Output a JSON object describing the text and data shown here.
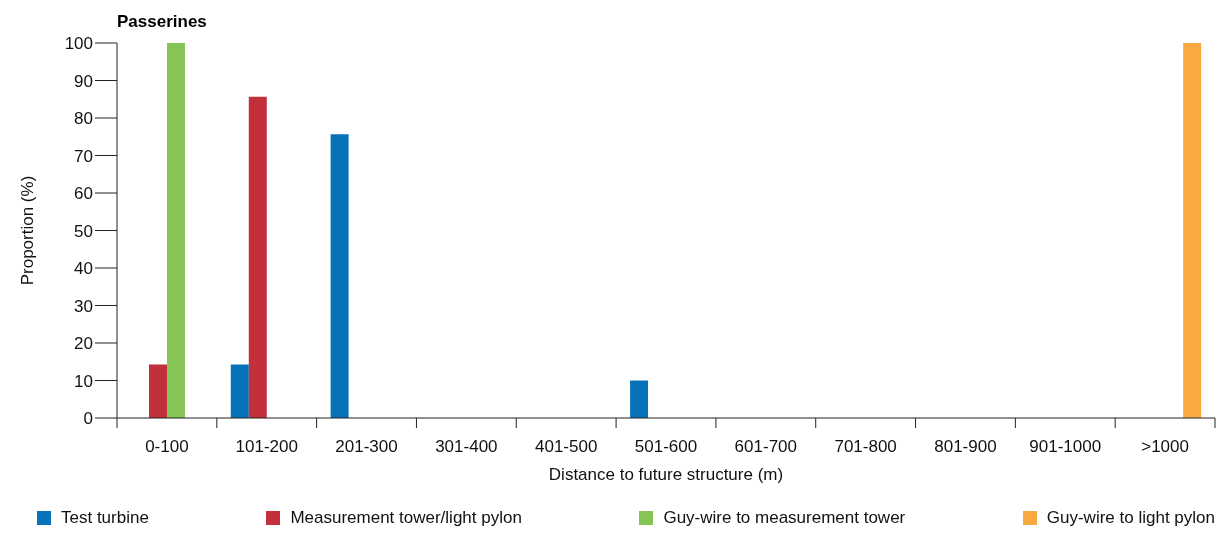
{
  "chart_data": {
    "type": "bar",
    "title": "Passerines",
    "xlabel": "Distance to future structure (m)",
    "ylabel": "Proportion (%)",
    "categories": [
      "0-100",
      "101-200",
      "201-300",
      "301-400",
      "401-500",
      "501-600",
      "601-700",
      "701-800",
      "801-900",
      "901-1000",
      ">1000"
    ],
    "series": [
      {
        "name": "Test turbine",
        "color": "#0673b9",
        "values": [
          0,
          14.3,
          75.7,
          0,
          0,
          10,
          0,
          0,
          0,
          0,
          0
        ]
      },
      {
        "name": "Measurement tower/light pylon",
        "color": "#c1303b",
        "values": [
          14.3,
          85.7,
          0,
          0,
          0,
          0,
          0,
          0,
          0,
          0,
          0
        ]
      },
      {
        "name": "Guy-wire to measurement tower",
        "color": "#86c455",
        "values": [
          100,
          0,
          0,
          0,
          0,
          0,
          0,
          0,
          0,
          0,
          0
        ]
      },
      {
        "name": "Guy-wire to light pylon",
        "color": "#f9a942",
        "values": [
          0,
          0,
          0,
          0,
          0,
          0,
          0,
          0,
          0,
          0,
          100
        ]
      }
    ],
    "ylim": [
      0,
      100
    ],
    "yticks": [
      0,
      10,
      20,
      30,
      40,
      50,
      60,
      70,
      80,
      90,
      100
    ],
    "grid": false,
    "legend": "bottom"
  }
}
